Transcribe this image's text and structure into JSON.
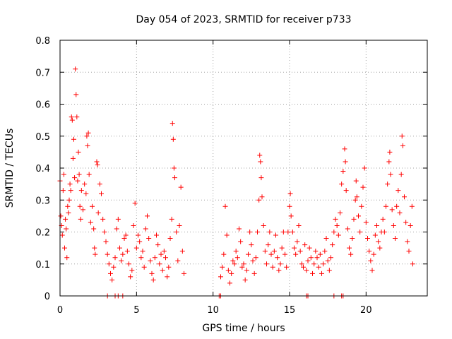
{
  "chart_data": {
    "type": "scatter",
    "title": "Day 054 of 2023, SRMTID for receiver p733",
    "xlabel": "GPS time / hours",
    "ylabel": "SRMTID / TECUs",
    "xlim": [
      0,
      24
    ],
    "ylim": [
      0,
      0.8
    ],
    "x_ticks": [
      0,
      5,
      10,
      15,
      20
    ],
    "y_ticks": [
      0,
      0.1,
      0.2,
      0.3,
      0.4,
      0.5,
      0.6,
      0.7,
      0.8
    ],
    "x_tick_labels": [
      "0",
      "5",
      "10",
      "15",
      "20"
    ],
    "y_tick_labels": [
      "0",
      "0.1",
      "0.2",
      "0.3",
      "0.4",
      "0.5",
      "0.6",
      "0.7",
      "0.8"
    ],
    "grid": true,
    "marker": "+",
    "series": [
      {
        "name": "SRMTID",
        "color": "#ff0000",
        "points": [
          [
            0.0,
            0.36
          ],
          [
            0.05,
            0.25
          ],
          [
            0.1,
            0.22
          ],
          [
            0.15,
            0.19
          ],
          [
            0.2,
            0.33
          ],
          [
            0.25,
            0.38
          ],
          [
            0.3,
            0.15
          ],
          [
            0.35,
            0.24
          ],
          [
            0.4,
            0.21
          ],
          [
            0.45,
            0.12
          ],
          [
            0.5,
            0.28
          ],
          [
            0.55,
            0.26
          ],
          [
            0.6,
            0.3
          ],
          [
            0.65,
            0.35
          ],
          [
            0.7,
            0.33
          ],
          [
            0.75,
            0.56
          ],
          [
            0.8,
            0.55
          ],
          [
            0.85,
            0.43
          ],
          [
            0.9,
            0.49
          ],
          [
            0.95,
            0.37
          ],
          [
            1.0,
            0.71
          ],
          [
            1.05,
            0.63
          ],
          [
            1.1,
            0.56
          ],
          [
            1.15,
            0.36
          ],
          [
            1.2,
            0.45
          ],
          [
            1.25,
            0.38
          ],
          [
            1.3,
            0.28
          ],
          [
            1.35,
            0.24
          ],
          [
            1.4,
            0.33
          ],
          [
            1.5,
            0.27
          ],
          [
            1.6,
            0.35
          ],
          [
            1.7,
            0.32
          ],
          [
            1.75,
            0.5
          ],
          [
            1.8,
            0.47
          ],
          [
            1.85,
            0.51
          ],
          [
            1.9,
            0.38
          ],
          [
            2.0,
            0.23
          ],
          [
            2.1,
            0.28
          ],
          [
            2.2,
            0.21
          ],
          [
            2.25,
            0.15
          ],
          [
            2.3,
            0.13
          ],
          [
            2.4,
            0.42
          ],
          [
            2.45,
            0.41
          ],
          [
            2.5,
            0.26
          ],
          [
            2.6,
            0.35
          ],
          [
            2.7,
            0.32
          ],
          [
            2.8,
            0.24
          ],
          [
            2.9,
            0.2
          ],
          [
            3.0,
            0.17
          ],
          [
            3.1,
            0.13
          ],
          [
            3.2,
            0.1
          ],
          [
            3.3,
            0.07
          ],
          [
            3.4,
            0.05
          ],
          [
            3.5,
            0.09
          ],
          [
            3.6,
            0.12
          ],
          [
            3.7,
            0.21
          ],
          [
            3.8,
            0.24
          ],
          [
            3.9,
            0.15
          ],
          [
            4.0,
            0.11
          ],
          [
            4.1,
            0.13
          ],
          [
            4.2,
            0.18
          ],
          [
            4.3,
            0.19
          ],
          [
            4.4,
            0.14
          ],
          [
            4.5,
            0.1
          ],
          [
            4.6,
            0.06
          ],
          [
            4.7,
            0.08
          ],
          [
            4.8,
            0.22
          ],
          [
            4.9,
            0.29
          ],
          [
            5.0,
            0.15
          ],
          [
            5.1,
            0.19
          ],
          [
            5.2,
            0.17
          ],
          [
            5.3,
            0.12
          ],
          [
            5.4,
            0.14
          ],
          [
            5.5,
            0.09
          ],
          [
            5.6,
            0.21
          ],
          [
            5.7,
            0.25
          ],
          [
            5.8,
            0.18
          ],
          [
            5.9,
            0.11
          ],
          [
            6.0,
            0.07
          ],
          [
            6.1,
            0.05
          ],
          [
            6.2,
            0.12
          ],
          [
            6.3,
            0.19
          ],
          [
            6.4,
            0.16
          ],
          [
            6.5,
            0.1
          ],
          [
            6.6,
            0.13
          ],
          [
            6.7,
            0.08
          ],
          [
            6.8,
            0.14
          ],
          [
            6.9,
            0.12
          ],
          [
            7.0,
            0.06
          ],
          [
            7.1,
            0.09
          ],
          [
            7.2,
            0.18
          ],
          [
            7.3,
            0.24
          ],
          [
            7.35,
            0.54
          ],
          [
            7.4,
            0.49
          ],
          [
            7.45,
            0.4
          ],
          [
            7.5,
            0.37
          ],
          [
            7.6,
            0.2
          ],
          [
            7.7,
            0.11
          ],
          [
            7.8,
            0.22
          ],
          [
            7.9,
            0.34
          ],
          [
            8.0,
            0.14
          ],
          [
            8.1,
            0.07
          ],
          [
            3.1,
            0.0
          ],
          [
            3.6,
            0.0
          ],
          [
            3.8,
            0.0
          ],
          [
            4.1,
            0.0
          ],
          [
            10.4,
            0.0
          ],
          [
            10.5,
            0.0
          ],
          [
            16.1,
            0.0
          ],
          [
            16.2,
            0.0
          ],
          [
            17.9,
            0.0
          ],
          [
            18.4,
            0.0
          ],
          [
            18.5,
            0.0
          ],
          [
            10.5,
            0.06
          ],
          [
            10.6,
            0.09
          ],
          [
            10.7,
            0.13
          ],
          [
            10.8,
            0.28
          ],
          [
            10.9,
            0.19
          ],
          [
            11.0,
            0.08
          ],
          [
            11.1,
            0.04
          ],
          [
            11.2,
            0.07
          ],
          [
            11.3,
            0.11
          ],
          [
            11.4,
            0.1
          ],
          [
            11.5,
            0.14
          ],
          [
            11.6,
            0.12
          ],
          [
            11.7,
            0.21
          ],
          [
            11.8,
            0.17
          ],
          [
            11.9,
            0.09
          ],
          [
            12.0,
            0.1
          ],
          [
            12.1,
            0.05
          ],
          [
            12.2,
            0.08
          ],
          [
            12.3,
            0.13
          ],
          [
            12.4,
            0.2
          ],
          [
            12.5,
            0.16
          ],
          [
            12.6,
            0.11
          ],
          [
            12.7,
            0.07
          ],
          [
            12.8,
            0.12
          ],
          [
            12.9,
            0.2
          ],
          [
            13.0,
            0.3
          ],
          [
            13.05,
            0.44
          ],
          [
            13.1,
            0.42
          ],
          [
            13.15,
            0.37
          ],
          [
            13.2,
            0.31
          ],
          [
            13.3,
            0.22
          ],
          [
            13.4,
            0.14
          ],
          [
            13.5,
            0.1
          ],
          [
            13.6,
            0.16
          ],
          [
            13.7,
            0.2
          ],
          [
            13.8,
            0.13
          ],
          [
            13.9,
            0.09
          ],
          [
            14.0,
            0.14
          ],
          [
            14.1,
            0.19
          ],
          [
            14.2,
            0.12
          ],
          [
            14.3,
            0.08
          ],
          [
            14.4,
            0.1
          ],
          [
            14.5,
            0.15
          ],
          [
            14.6,
            0.2
          ],
          [
            14.7,
            0.13
          ],
          [
            14.8,
            0.09
          ],
          [
            14.9,
            0.2
          ],
          [
            15.0,
            0.28
          ],
          [
            15.05,
            0.32
          ],
          [
            15.1,
            0.25
          ],
          [
            15.2,
            0.2
          ],
          [
            15.3,
            0.15
          ],
          [
            15.4,
            0.13
          ],
          [
            15.5,
            0.17
          ],
          [
            15.6,
            0.22
          ],
          [
            15.7,
            0.14
          ],
          [
            15.8,
            0.1
          ],
          [
            15.9,
            0.09
          ],
          [
            16.0,
            0.16
          ],
          [
            16.1,
            0.08
          ],
          [
            16.2,
            0.11
          ],
          [
            16.3,
            0.15
          ],
          [
            16.4,
            0.12
          ],
          [
            16.5,
            0.07
          ],
          [
            16.6,
            0.1
          ],
          [
            16.7,
            0.14
          ],
          [
            16.8,
            0.12
          ],
          [
            16.9,
            0.09
          ],
          [
            17.0,
            0.13
          ],
          [
            17.1,
            0.07
          ],
          [
            17.2,
            0.1
          ],
          [
            17.3,
            0.14
          ],
          [
            17.4,
            0.18
          ],
          [
            17.5,
            0.11
          ],
          [
            17.6,
            0.08
          ],
          [
            17.7,
            0.12
          ],
          [
            17.8,
            0.16
          ],
          [
            17.9,
            0.2
          ],
          [
            18.0,
            0.24
          ],
          [
            18.1,
            0.22
          ],
          [
            18.2,
            0.19
          ],
          [
            18.3,
            0.26
          ],
          [
            18.4,
            0.35
          ],
          [
            18.5,
            0.39
          ],
          [
            18.6,
            0.46
          ],
          [
            18.65,
            0.42
          ],
          [
            18.7,
            0.33
          ],
          [
            18.8,
            0.21
          ],
          [
            18.9,
            0.15
          ],
          [
            19.0,
            0.13
          ],
          [
            19.1,
            0.18
          ],
          [
            19.2,
            0.24
          ],
          [
            19.3,
            0.3
          ],
          [
            19.35,
            0.36
          ],
          [
            19.4,
            0.31
          ],
          [
            19.5,
            0.25
          ],
          [
            19.6,
            0.2
          ],
          [
            19.7,
            0.28
          ],
          [
            19.8,
            0.34
          ],
          [
            19.9,
            0.4
          ],
          [
            20.0,
            0.23
          ],
          [
            20.1,
            0.18
          ],
          [
            20.2,
            0.14
          ],
          [
            20.3,
            0.11
          ],
          [
            20.4,
            0.08
          ],
          [
            20.5,
            0.13
          ],
          [
            20.6,
            0.19
          ],
          [
            20.7,
            0.22
          ],
          [
            20.8,
            0.17
          ],
          [
            20.9,
            0.15
          ],
          [
            21.0,
            0.2
          ],
          [
            21.1,
            0.24
          ],
          [
            21.2,
            0.2
          ],
          [
            21.3,
            0.28
          ],
          [
            21.4,
            0.35
          ],
          [
            21.5,
            0.42
          ],
          [
            21.55,
            0.45
          ],
          [
            21.6,
            0.38
          ],
          [
            21.7,
            0.27
          ],
          [
            21.8,
            0.22
          ],
          [
            21.9,
            0.18
          ],
          [
            22.0,
            0.28
          ],
          [
            22.1,
            0.33
          ],
          [
            22.2,
            0.26
          ],
          [
            22.3,
            0.38
          ],
          [
            22.35,
            0.5
          ],
          [
            22.4,
            0.47
          ],
          [
            22.5,
            0.31
          ],
          [
            22.6,
            0.23
          ],
          [
            22.7,
            0.17
          ],
          [
            22.8,
            0.14
          ],
          [
            22.9,
            0.22
          ],
          [
            23.0,
            0.28
          ],
          [
            23.05,
            0.1
          ]
        ]
      }
    ]
  }
}
